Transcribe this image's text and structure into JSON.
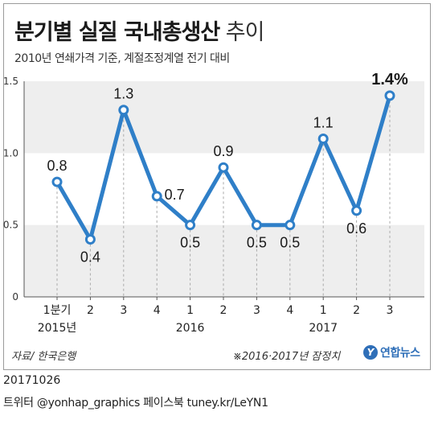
{
  "title": {
    "bold": "분기별 실질 국내총생산",
    "light": "추이"
  },
  "subtitle": "2010년 연쇄가격 기준, 계절조정계열 전기 대비",
  "chart_data": {
    "type": "line",
    "title": "분기별 실질 국내총생산 추이",
    "ylabel": "",
    "xlabel": "",
    "ylim": [
      0,
      1.5
    ],
    "yticks": [
      "0",
      "0.5",
      "1.0",
      "1.5"
    ],
    "categories": [
      "1분기",
      "2",
      "3",
      "4",
      "1",
      "2",
      "3",
      "4",
      "1",
      "2",
      "3"
    ],
    "year_labels": [
      {
        "index": 0,
        "label": "2015년"
      },
      {
        "index": 4,
        "label": "2016"
      },
      {
        "index": 8,
        "label": "2017"
      }
    ],
    "series": [
      {
        "values": [
          0.8,
          0.4,
          1.3,
          0.7,
          0.5,
          0.9,
          0.5,
          0.5,
          1.1,
          0.6,
          1.4
        ],
        "labels": [
          "0.8",
          "0.4",
          "1.3",
          "0.7",
          "0.5",
          "0.9",
          "0.5",
          "0.5",
          "1.1",
          "0.6",
          "1.4%"
        ]
      }
    ],
    "colors": {
      "line": "#2f7fc8",
      "marker_fill": "#ffffff",
      "band": "#eeeeee",
      "dash": "#aaaaaa"
    },
    "grid": "alternating horizontal bands"
  },
  "source": "자료/ 한국은행",
  "note": "※2016·2017년 잠정치",
  "logo": {
    "mark": "Y",
    "text": "연합뉴스"
  },
  "date": "20171026",
  "credit": "트위터 @yonhap_graphics  페이스북 tuney.kr/LeYN1"
}
